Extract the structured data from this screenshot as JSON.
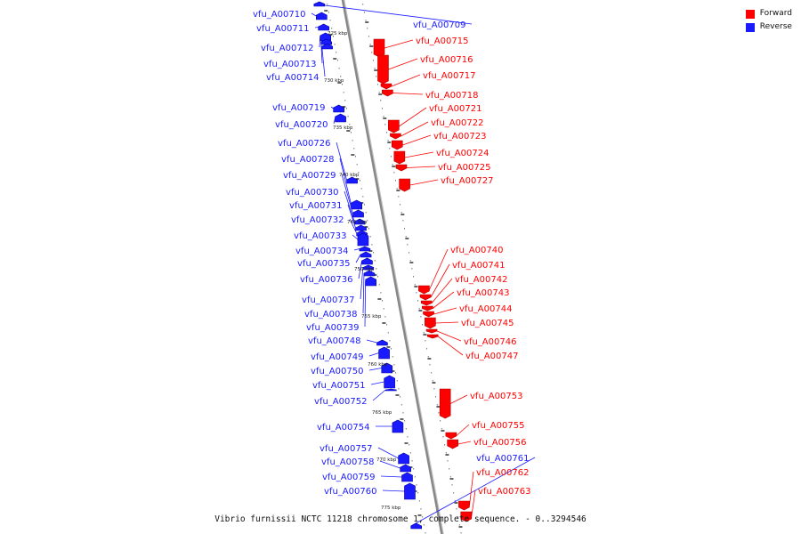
{
  "legend": {
    "forward_label": "Forward",
    "reverse_label": "Reverse",
    "forward_color": "#ff0000",
    "reverse_color": "#1a1aff"
  },
  "caption": "Vibrio furnissii NCTC 11218 chromosome 1, complete sequence. - 0..3294546",
  "ruler_labels": [
    "725 kbp",
    "730 kbp",
    "735 kbp",
    "740 kbp",
    "745 kbp",
    "750 kbp",
    "755 kbp",
    "760 kbp",
    "765 kbp",
    "770 kbp",
    "775 kbp"
  ],
  "genes": [
    {
      "id": "vfu_A00709",
      "strand": "reverse"
    },
    {
      "id": "vfu_A00710",
      "strand": "reverse"
    },
    {
      "id": "vfu_A00711",
      "strand": "reverse"
    },
    {
      "id": "vfu_A00712",
      "strand": "reverse"
    },
    {
      "id": "vfu_A00713",
      "strand": "reverse"
    },
    {
      "id": "vfu_A00714",
      "strand": "reverse"
    },
    {
      "id": "vfu_A00715",
      "strand": "forward"
    },
    {
      "id": "vfu_A00716",
      "strand": "forward"
    },
    {
      "id": "vfu_A00717",
      "strand": "forward"
    },
    {
      "id": "vfu_A00718",
      "strand": "forward"
    },
    {
      "id": "vfu_A00719",
      "strand": "reverse"
    },
    {
      "id": "vfu_A00720",
      "strand": "reverse"
    },
    {
      "id": "vfu_A00721",
      "strand": "forward"
    },
    {
      "id": "vfu_A00722",
      "strand": "forward"
    },
    {
      "id": "vfu_A00723",
      "strand": "forward"
    },
    {
      "id": "vfu_A00724",
      "strand": "forward"
    },
    {
      "id": "vfu_A00725",
      "strand": "forward"
    },
    {
      "id": "vfu_A00726",
      "strand": "reverse"
    },
    {
      "id": "vfu_A00727",
      "strand": "forward"
    },
    {
      "id": "vfu_A00728",
      "strand": "reverse"
    },
    {
      "id": "vfu_A00729",
      "strand": "reverse"
    },
    {
      "id": "vfu_A00730",
      "strand": "reverse"
    },
    {
      "id": "vfu_A00731",
      "strand": "reverse"
    },
    {
      "id": "vfu_A00732",
      "strand": "reverse"
    },
    {
      "id": "vfu_A00733",
      "strand": "reverse"
    },
    {
      "id": "vfu_A00734",
      "strand": "reverse"
    },
    {
      "id": "vfu_A00735",
      "strand": "reverse"
    },
    {
      "id": "vfu_A00736",
      "strand": "reverse"
    },
    {
      "id": "vfu_A00737",
      "strand": "reverse"
    },
    {
      "id": "vfu_A00738",
      "strand": "reverse"
    },
    {
      "id": "vfu_A00739",
      "strand": "reverse"
    },
    {
      "id": "vfu_A00740",
      "strand": "forward"
    },
    {
      "id": "vfu_A00741",
      "strand": "forward"
    },
    {
      "id": "vfu_A00742",
      "strand": "forward"
    },
    {
      "id": "vfu_A00743",
      "strand": "forward"
    },
    {
      "id": "vfu_A00744",
      "strand": "forward"
    },
    {
      "id": "vfu_A00745",
      "strand": "forward"
    },
    {
      "id": "vfu_A00746",
      "strand": "forward"
    },
    {
      "id": "vfu_A00747",
      "strand": "forward"
    },
    {
      "id": "vfu_A00748",
      "strand": "reverse"
    },
    {
      "id": "vfu_A00749",
      "strand": "reverse"
    },
    {
      "id": "vfu_A00750",
      "strand": "reverse"
    },
    {
      "id": "vfu_A00751",
      "strand": "reverse"
    },
    {
      "id": "vfu_A00752",
      "strand": "reverse"
    },
    {
      "id": "vfu_A00753",
      "strand": "forward"
    },
    {
      "id": "vfu_A00754",
      "strand": "reverse"
    },
    {
      "id": "vfu_A00755",
      "strand": "forward"
    },
    {
      "id": "vfu_A00756",
      "strand": "forward"
    },
    {
      "id": "vfu_A00757",
      "strand": "reverse"
    },
    {
      "id": "vfu_A00758",
      "strand": "reverse"
    },
    {
      "id": "vfu_A00759",
      "strand": "reverse"
    },
    {
      "id": "vfu_A00760",
      "strand": "reverse"
    },
    {
      "id": "vfu_A00761",
      "strand": "reverse"
    },
    {
      "id": "vfu_A00762",
      "strand": "forward"
    },
    {
      "id": "vfu_A00763",
      "strand": "forward"
    }
  ]
}
